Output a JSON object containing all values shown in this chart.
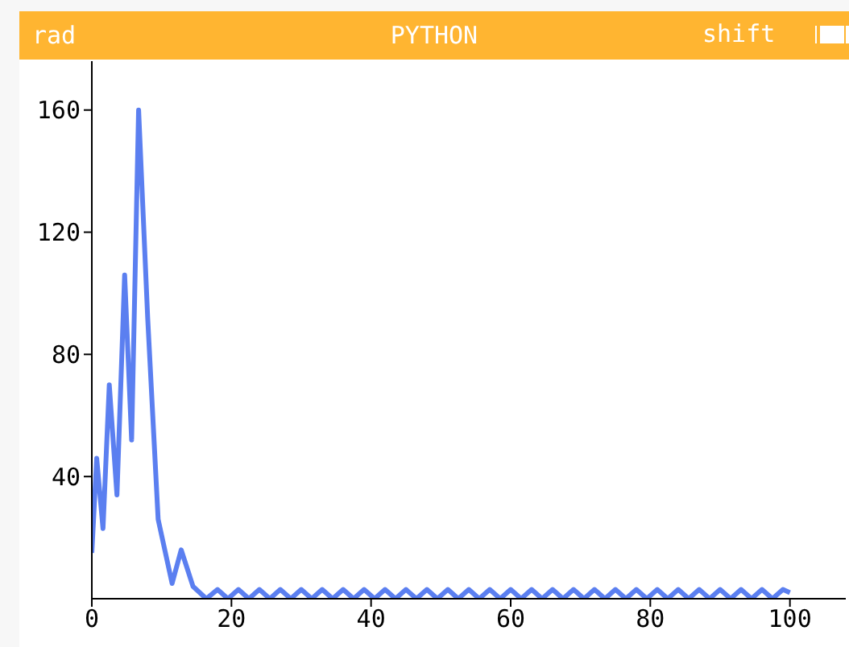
{
  "chart_data": {
    "type": "line",
    "title": "PYTHON",
    "annotations": [
      "rad",
      "shift"
    ],
    "x": [
      0,
      0.7,
      1.6,
      2.5,
      3.6,
      4.7,
      5.7,
      6.7,
      8,
      9.5,
      11.5,
      12.8,
      14.5,
      16.4,
      18,
      19.5,
      21,
      22.5,
      24,
      25.5,
      27,
      28.5,
      30,
      31.5,
      33,
      34.5,
      36,
      37.5,
      39,
      40.5,
      42,
      43.5,
      45,
      46.5,
      48,
      49.5,
      51,
      52.5,
      54,
      55.5,
      57,
      58.5,
      60,
      61.5,
      63,
      64.5,
      66,
      67.5,
      69,
      70.5,
      72,
      73.5,
      75,
      76.5,
      78,
      79.5,
      81,
      82.5,
      84,
      85.5,
      87,
      88.5,
      90,
      91.5,
      93,
      94.5,
      96,
      97.5,
      99,
      100
    ],
    "series": [
      {
        "color": "#5b7ff0",
        "values": [
          15,
          46,
          23,
          70,
          34,
          106,
          52,
          160,
          92,
          26,
          5,
          16,
          4,
          0,
          3,
          0,
          3,
          0,
          3,
          0,
          3,
          0,
          3,
          0,
          3,
          0,
          3,
          0,
          3,
          0,
          3,
          0,
          3,
          0,
          3,
          0,
          3,
          0,
          3,
          0,
          3,
          0,
          3,
          0,
          3,
          0,
          3,
          0,
          3,
          0,
          3,
          0,
          3,
          0,
          3,
          0,
          3,
          0,
          3,
          0,
          3,
          0,
          3,
          0,
          3,
          0,
          3,
          0,
          3,
          2
        ]
      }
    ],
    "xlim": [
      0,
      108
    ],
    "ylim": [
      0,
      176
    ],
    "xticks": [
      0,
      20,
      40,
      60,
      80,
      100
    ],
    "yticks": [
      40,
      80,
      120,
      160
    ],
    "grid": false,
    "legend": false,
    "marker": "none",
    "line_style": "solid"
  }
}
